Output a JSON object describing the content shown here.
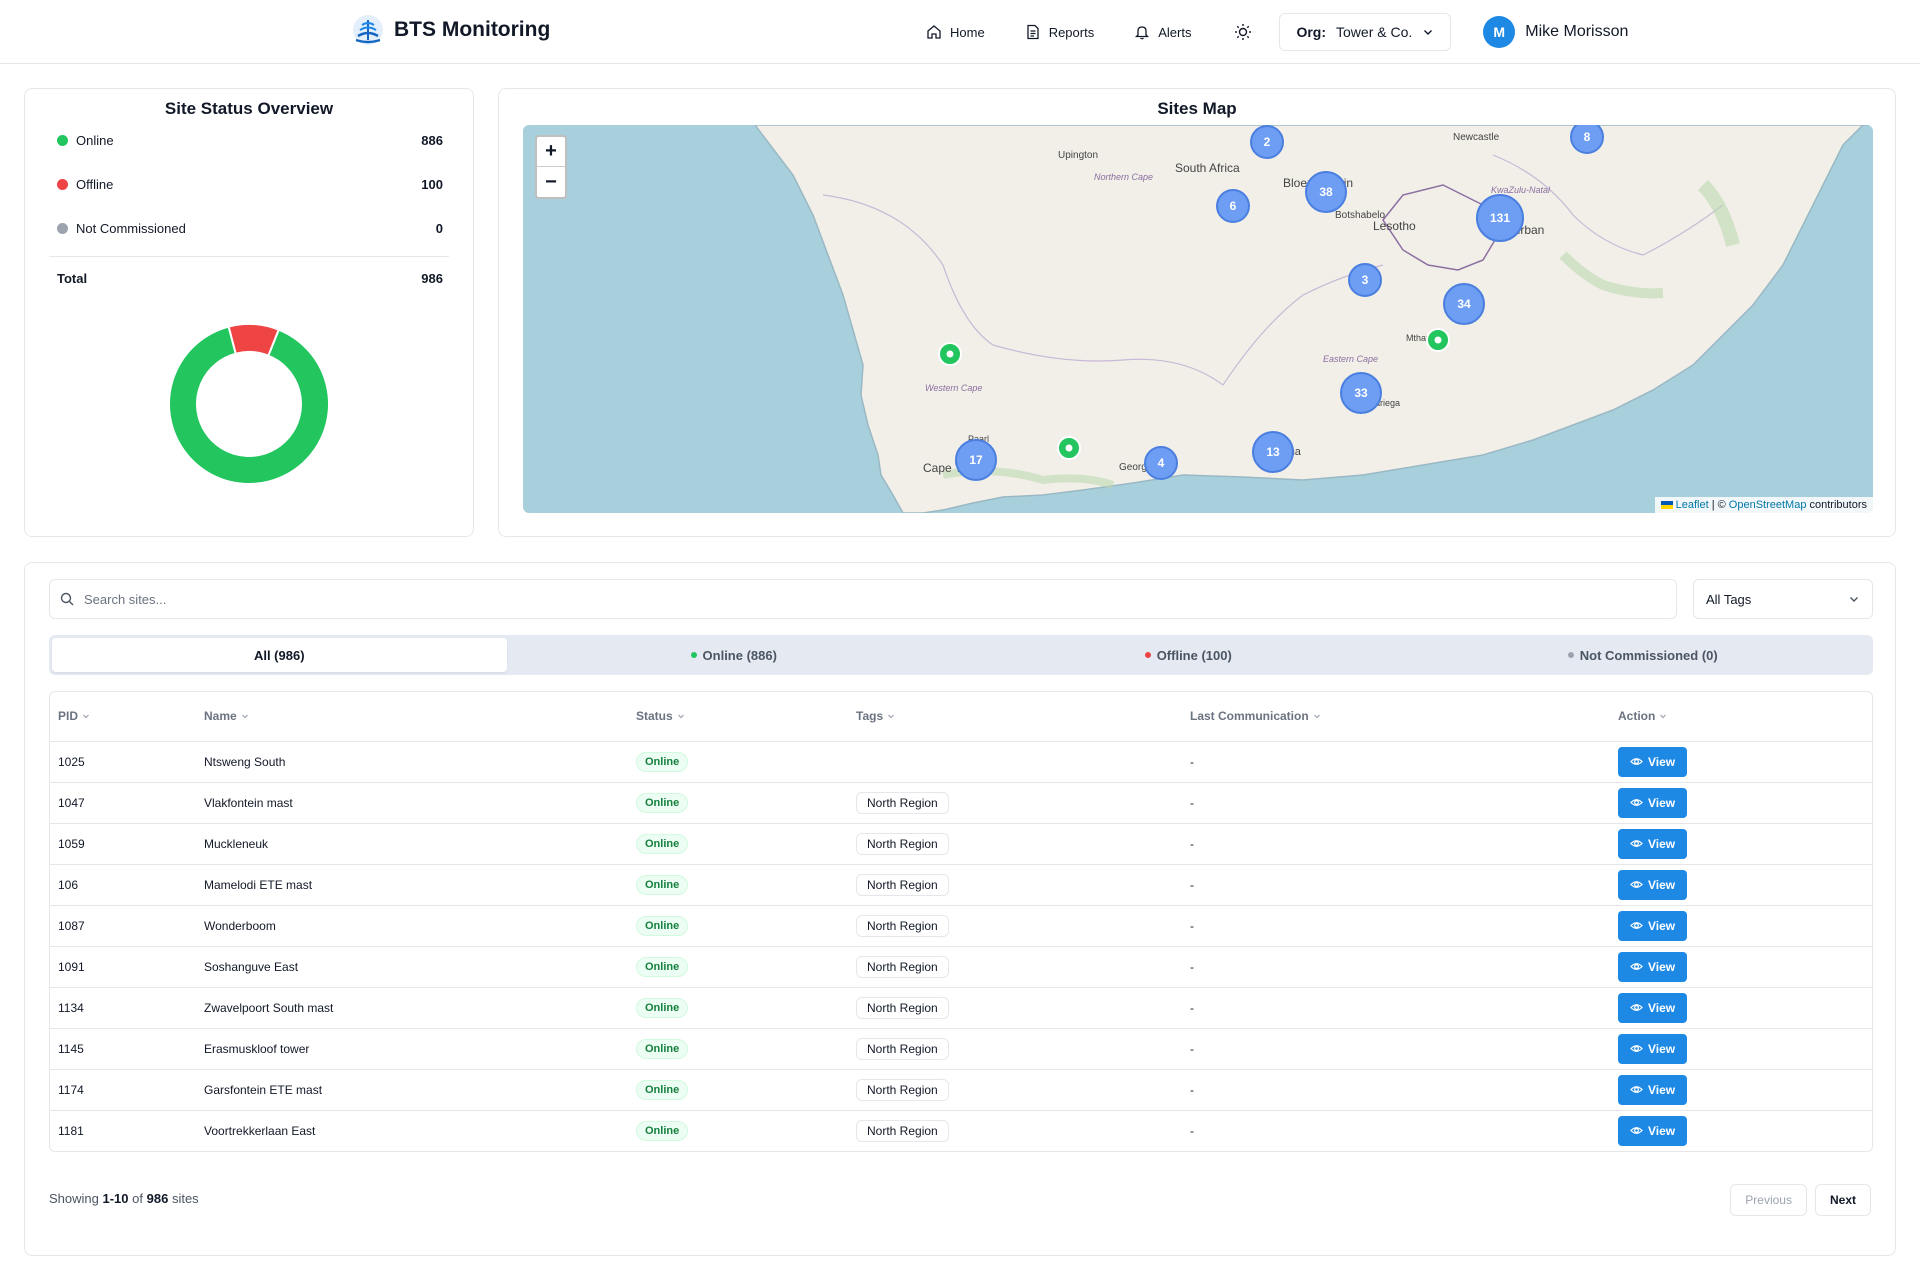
{
  "header": {
    "brand": "BTS Monitoring",
    "nav": [
      {
        "label": "Home",
        "icon": "home-icon"
      },
      {
        "label": "Reports",
        "icon": "document-icon"
      },
      {
        "label": "Alerts",
        "icon": "bell-icon"
      }
    ],
    "org_prefix": "Org:",
    "org_name": "Tower & Co.",
    "user_initial": "M",
    "user_name": "Mike Morisson"
  },
  "status_overview": {
    "title": "Site Status Overview",
    "items": [
      {
        "label": "Online",
        "value": 886,
        "color": "#22c55e"
      },
      {
        "label": "Offline",
        "value": 100,
        "color": "#ef4444"
      },
      {
        "label": "Not Commissioned",
        "value": 0,
        "color": "#9ca3af"
      }
    ],
    "total_label": "Total",
    "total_value": 986
  },
  "map": {
    "title": "Sites Map",
    "attribution_leaflet": "Leaflet",
    "attribution_sep": "| ©",
    "attribution_osm": "OpenStreetMap",
    "attribution_suffix": "contributors",
    "labels": [
      "Upington",
      "South Africa",
      "Northern Cape",
      "Bloemfontein",
      "Botshabelo",
      "Lesotho",
      "Newcastle",
      "KwaZulu-Natal",
      "Durban",
      "Mthatha",
      "Eastern Cape",
      "Gqeberha",
      "George",
      "Western Cape",
      "Cape Town",
      "Paarl",
      "Kariega"
    ],
    "clusters": [
      {
        "count": "2"
      },
      {
        "count": "8"
      },
      {
        "count": "6"
      },
      {
        "count": "38"
      },
      {
        "count": "131"
      },
      {
        "count": "3"
      },
      {
        "count": "34"
      },
      {
        "count": "33"
      },
      {
        "count": "17"
      },
      {
        "count": "4"
      },
      {
        "count": "13"
      }
    ]
  },
  "sites": {
    "search_placeholder": "Search sites...",
    "tags_filter": "All Tags",
    "tabs": [
      {
        "label": "All (986)",
        "active": true
      },
      {
        "label": "Online (886)",
        "color": "#22c55e"
      },
      {
        "label": "Offline (100)",
        "color": "#ef4444"
      },
      {
        "label": "Not Commissioned (0)",
        "color": "#9ca3af"
      }
    ],
    "columns": [
      "PID",
      "Name",
      "Status",
      "Tags",
      "Last Communication",
      "Action"
    ],
    "rows": [
      {
        "pid": "1025",
        "name": "Ntsweng South",
        "status": "Online",
        "tag": "",
        "last": "-",
        "action": "View"
      },
      {
        "pid": "1047",
        "name": "Vlakfontein mast",
        "status": "Online",
        "tag": "North Region",
        "last": "-",
        "action": "View"
      },
      {
        "pid": "1059",
        "name": "Muckleneuk",
        "status": "Online",
        "tag": "North Region",
        "last": "-",
        "action": "View"
      },
      {
        "pid": "106",
        "name": "Mamelodi ETE mast",
        "status": "Online",
        "tag": "North Region",
        "last": "-",
        "action": "View"
      },
      {
        "pid": "1087",
        "name": "Wonderboom",
        "status": "Online",
        "tag": "North Region",
        "last": "-",
        "action": "View"
      },
      {
        "pid": "1091",
        "name": "Soshanguve East",
        "status": "Online",
        "tag": "North Region",
        "last": "-",
        "action": "View"
      },
      {
        "pid": "1134",
        "name": "Zwavelpoort South mast",
        "status": "Online",
        "tag": "North Region",
        "last": "-",
        "action": "View"
      },
      {
        "pid": "1145",
        "name": "Erasmuskloof tower",
        "status": "Online",
        "tag": "North Region",
        "last": "-",
        "action": "View"
      },
      {
        "pid": "1174",
        "name": "Garsfontein ETE mast",
        "status": "Online",
        "tag": "North Region",
        "last": "-",
        "action": "View"
      },
      {
        "pid": "1181",
        "name": "Voortrekkerlaan East",
        "status": "Online",
        "tag": "North Region",
        "last": "-",
        "action": "View"
      }
    ],
    "showing_prefix": "Showing",
    "showing_range": "1-10",
    "showing_of": "of",
    "showing_total": "986",
    "showing_suffix": "sites",
    "prev_label": "Previous",
    "next_label": "Next"
  }
}
